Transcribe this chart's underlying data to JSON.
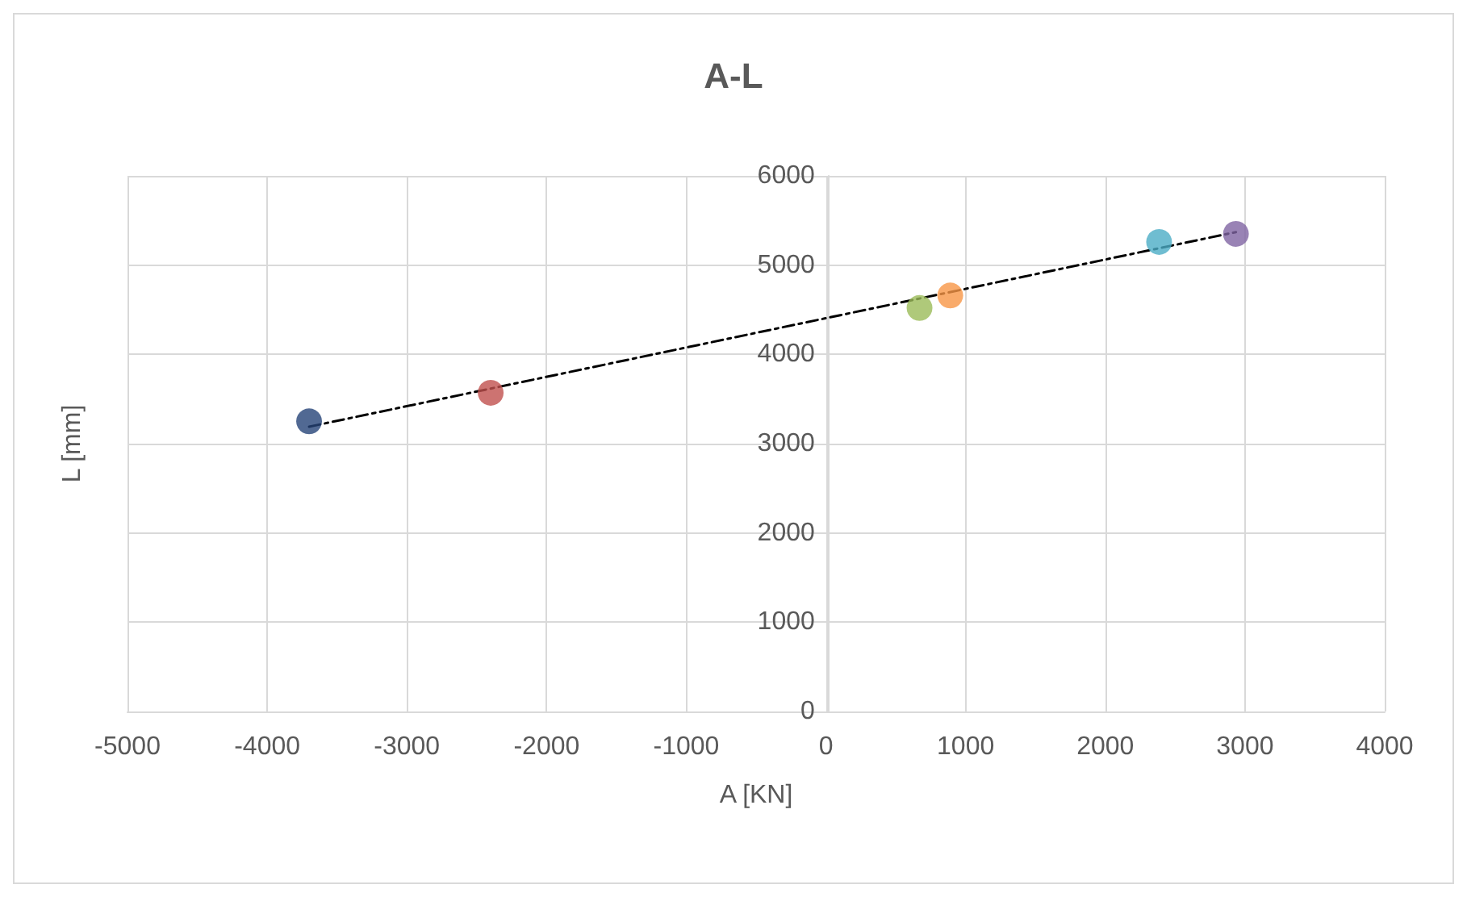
{
  "chart_data": {
    "type": "scatter",
    "title": "A-L",
    "xlabel": "A [KN]",
    "ylabel": "L [mm]",
    "xlim": [
      -5000,
      4000
    ],
    "xticks": [
      -5000,
      -4000,
      -3000,
      -2000,
      -1000,
      0,
      1000,
      2000,
      3000,
      4000
    ],
    "ylim": [
      0,
      6000
    ],
    "yticks": [
      0,
      1000,
      2000,
      3000,
      4000,
      5000,
      6000
    ],
    "grid": true,
    "marker": "circle",
    "series": [
      {
        "x": [
          -3700,
          -2400,
          670,
          890,
          2385,
          2935
        ],
        "values": [
          3250,
          3570,
          4520,
          4660,
          5260,
          5350
        ],
        "colors": [
          "#264478",
          "#c0504d",
          "#9bbb59",
          "#f79646",
          "#4bacc6",
          "#8064a2"
        ]
      },
      {
        "type": "line",
        "color": "#000000",
        "line_style": "dashed",
        "marker": "none",
        "x": [
          -3700,
          2935
        ],
        "values": [
          3190,
          5370
        ]
      }
    ]
  }
}
